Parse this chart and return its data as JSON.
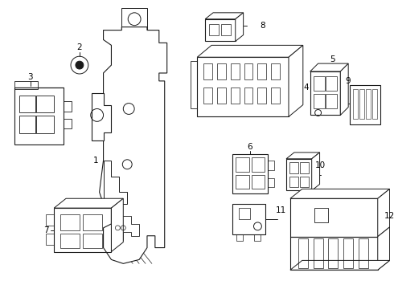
{
  "bg_color": "#ffffff",
  "line_color": "#1a1a1a",
  "lw": 0.7,
  "components": {
    "label_fontsize": 7.5
  }
}
